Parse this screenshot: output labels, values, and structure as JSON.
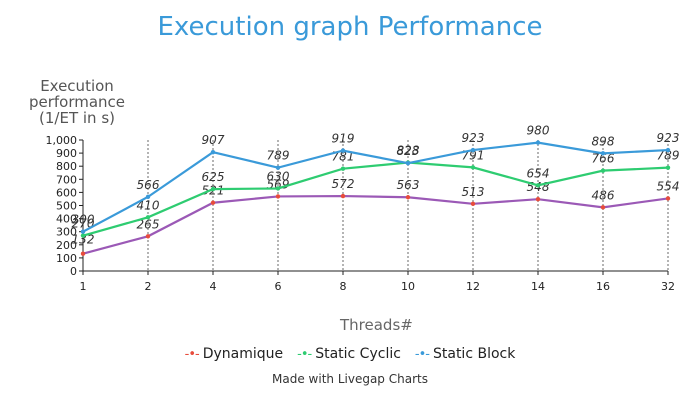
{
  "chart_data": {
    "type": "line",
    "title": "Execution graph Performance",
    "ylabel": "Execution performance (1/ET in s)",
    "ylabel_lines": [
      "Execution",
      "performance",
      "(1/ET in s)"
    ],
    "xlabel": "Threads#",
    "categories": [
      "1",
      "2",
      "4",
      "6",
      "8",
      "10",
      "12",
      "14",
      "16",
      "32"
    ],
    "ylim": [
      0,
      1000
    ],
    "yticks": [
      0,
      100,
      200,
      300,
      400,
      500,
      600,
      700,
      800,
      900,
      1000
    ],
    "ytick_labels": [
      "0",
      "100",
      "200",
      "300",
      "400",
      "500",
      "600",
      "700",
      "800",
      "900",
      "1,000"
    ],
    "grid": "vertical dotted",
    "legend": "bottom",
    "series": [
      {
        "name": "Dynamique",
        "color": "#9b59b6",
        "marker_color": "#e74c3c",
        "values": [
          132,
          265,
          521,
          569,
          572,
          563,
          513,
          548,
          486,
          554
        ]
      },
      {
        "name": "Static Cyclic",
        "color": "#2ecc71",
        "marker_color": "#2ecc71",
        "values": [
          270,
          410,
          625,
          630,
          781,
          828,
          791,
          654,
          766,
          789
        ]
      },
      {
        "name": "Static Block",
        "color": "#3a9ad9",
        "marker_color": "#3a9ad9",
        "values": [
          300,
          566,
          907,
          789,
          919,
          823,
          923,
          980,
          898,
          923
        ]
      }
    ]
  },
  "credit": "Made with Livegap Charts"
}
